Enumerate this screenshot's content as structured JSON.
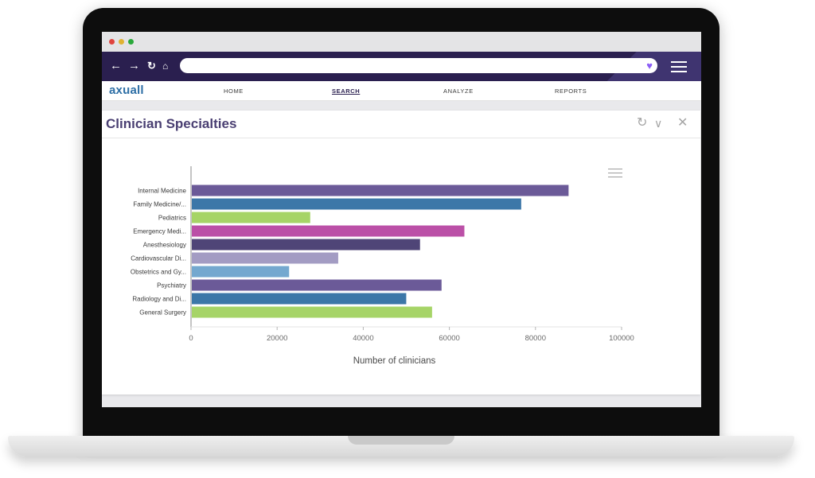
{
  "browser": {
    "dots": [
      "#e0443e",
      "#e0b232",
      "#29a83a"
    ],
    "nav_icons": [
      "back-arrow-icon",
      "forward-arrow-icon",
      "reload-icon",
      "home-icon"
    ],
    "bookmark_icon": "heart-icon",
    "menu_icon": "hamburger-menu-icon"
  },
  "app": {
    "logo": "axuall",
    "menu": [
      "HOME",
      "SEARCH",
      "ANALYZE",
      "REPORTS"
    ],
    "active_menu": "SEARCH"
  },
  "panel": {
    "title": "Clinician Specialties",
    "controls": [
      "refresh-icon",
      "collapse-icon",
      "close-icon"
    ]
  },
  "chart_data": {
    "type": "bar",
    "orientation": "horizontal",
    "categories": [
      "Internal Medicine",
      "Family Medicine/...",
      "Pediatrics",
      "Emergency Medi...",
      "Anesthesiology",
      "Cardiovascular Di...",
      "Obstetrics and Gy...",
      "Psychiatry",
      "Radiology and Di...",
      "General Surgery"
    ],
    "values": [
      87500,
      76500,
      27500,
      63300,
      53000,
      34000,
      22600,
      58000,
      49800,
      55800
    ],
    "colors": [
      "#6b5a98",
      "#3c77a8",
      "#a6d467",
      "#bb50a7",
      "#4f4577",
      "#a39cc3",
      "#74a8cf",
      "#6b5a98",
      "#3c77a8",
      "#a6d467"
    ],
    "xlabel": "Number of clinicians",
    "ylabel": "",
    "xlim": [
      0,
      100000
    ],
    "xticks": [
      "0",
      "20000",
      "40000",
      "60000",
      "80000",
      "100000"
    ],
    "grid": false,
    "legend": "none"
  }
}
